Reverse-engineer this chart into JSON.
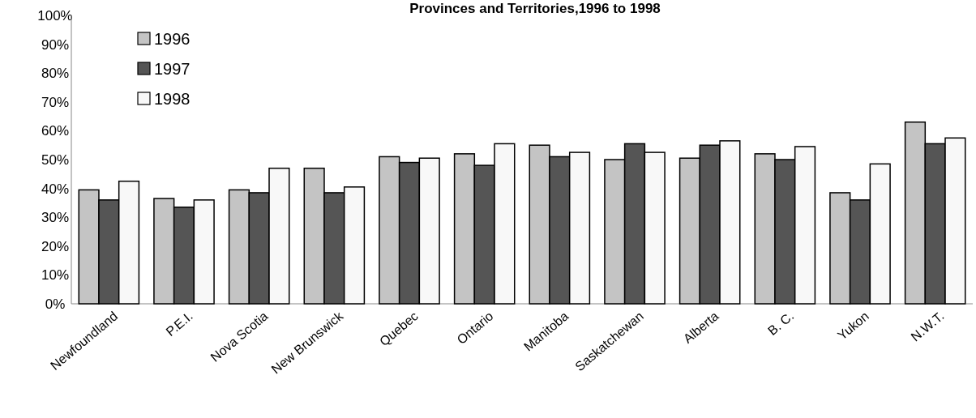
{
  "chart_data": {
    "type": "bar",
    "title": "Provinces and Territories,1996 to 1998",
    "categories": [
      "Newfoundland",
      "P.E.I.",
      "Nova Scotia",
      "New Brunswick",
      "Quebec",
      "Ontario",
      "Manitoba",
      "Saskatchewan",
      "Alberta",
      "B. C.",
      "Yukon",
      "N.W.T."
    ],
    "series": [
      {
        "name": "1996",
        "color": "#c4c4c4",
        "values": [
          39.5,
          36.5,
          39.5,
          47,
          51,
          52,
          55,
          50,
          50.5,
          52,
          38.5,
          63
        ]
      },
      {
        "name": "1997",
        "color": "#555555",
        "values": [
          36,
          33.5,
          38.5,
          38.5,
          49,
          48,
          51,
          55.5,
          55,
          50,
          36,
          55.5
        ]
      },
      {
        "name": "1998",
        "color": "#f8f8f8",
        "values": [
          42.5,
          36,
          47,
          40.5,
          50.5,
          55.5,
          52.5,
          52.5,
          56.5,
          54.5,
          48.5,
          57.5
        ]
      }
    ],
    "ylim": [
      0,
      100
    ],
    "yticks": [
      {
        "value": 0,
        "label": "0%"
      },
      {
        "value": 10,
        "label": "10%"
      },
      {
        "value": 20,
        "label": "20%"
      },
      {
        "value": 30,
        "label": "30%"
      },
      {
        "value": 40,
        "label": "40%"
      },
      {
        "value": 50,
        "label": "50%"
      },
      {
        "value": 60,
        "label": "60%"
      },
      {
        "value": 70,
        "label": "70%"
      },
      {
        "value": 80,
        "label": "80%"
      },
      {
        "value": 90,
        "label": "90%"
      },
      {
        "value": 100,
        "label": "100%"
      }
    ],
    "grid": false,
    "legend": "top left"
  }
}
